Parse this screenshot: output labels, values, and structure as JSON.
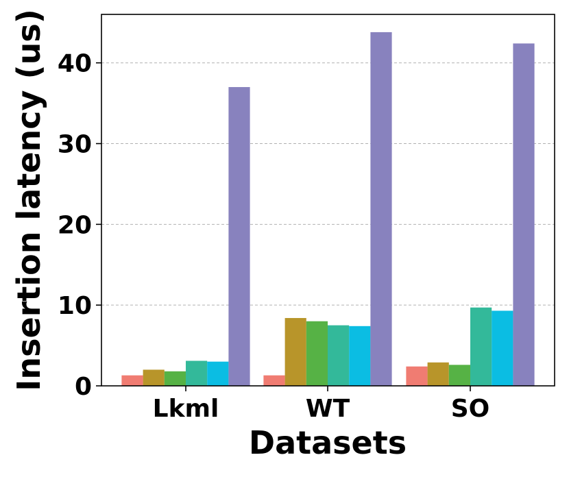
{
  "chart_data": {
    "type": "bar",
    "title": "",
    "xlabel": "Datasets",
    "ylabel": "Insertion latency (us)",
    "categories": [
      "Lkml",
      "WT",
      "SO"
    ],
    "ylim": [
      0,
      46
    ],
    "yticks": [
      0,
      10,
      20,
      30,
      40
    ],
    "grid": "y-dashed",
    "legend": "none",
    "series": [
      {
        "color": "#f07c72",
        "values": [
          1.3,
          1.3,
          2.4
        ]
      },
      {
        "color": "#b8952a",
        "values": [
          2.0,
          8.4,
          2.9
        ]
      },
      {
        "color": "#56b245",
        "values": [
          1.8,
          8.0,
          2.6
        ]
      },
      {
        "color": "#33b99a",
        "values": [
          3.1,
          7.5,
          9.7
        ]
      },
      {
        "color": "#0bbde3",
        "values": [
          3.0,
          7.4,
          9.3
        ]
      },
      {
        "color": "#8882be",
        "values": [
          37.0,
          43.8,
          42.4
        ]
      }
    ]
  }
}
